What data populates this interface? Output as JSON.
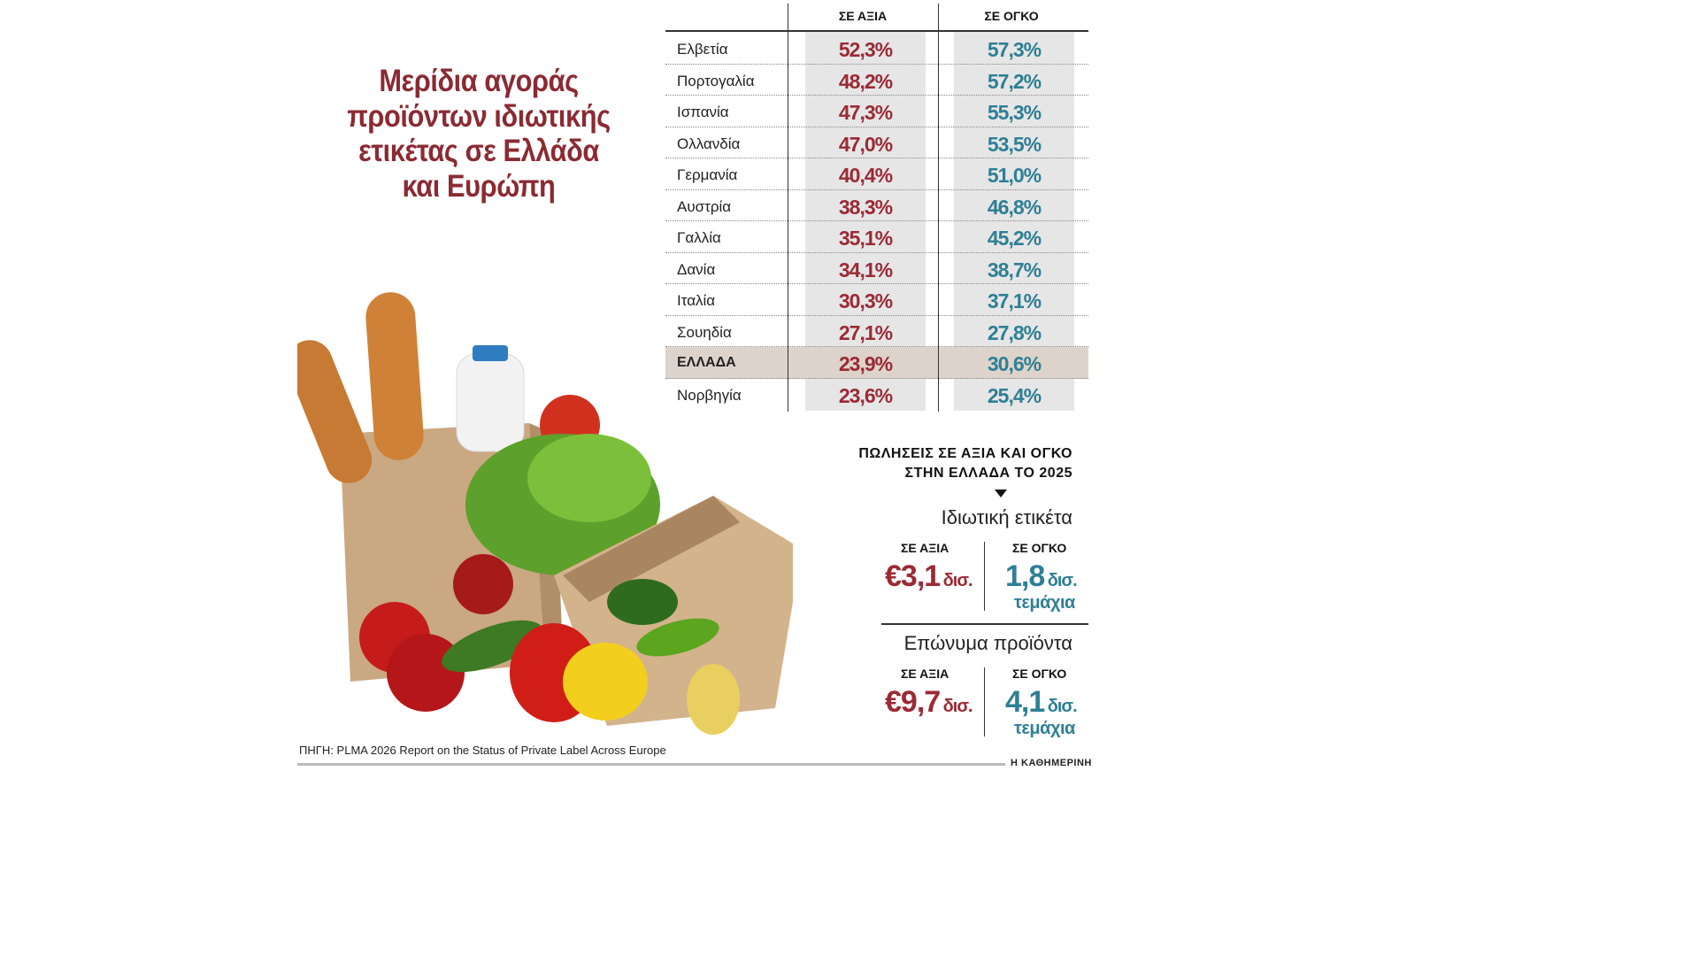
{
  "title": [
    "Μερίδια αγοράς",
    "προϊόντων ιδιωτικής",
    "ετικέτας σε Ελλάδα",
    "και Ευρώπη"
  ],
  "table": {
    "col_value": "ΣΕ ΑΞΙΑ",
    "col_volume": "ΣΕ ΟΓΚΟ",
    "rows": [
      {
        "country": "Ελβετία",
        "value": "52,3%",
        "volume": "57,3%"
      },
      {
        "country": "Πορτογαλία",
        "value": "48,2%",
        "volume": "57,2%"
      },
      {
        "country": "Ισπανία",
        "value": "47,3%",
        "volume": "55,3%"
      },
      {
        "country": "Ολλανδία",
        "value": "47,0%",
        "volume": "53,5%"
      },
      {
        "country": "Γερμανία",
        "value": "40,4%",
        "volume": "51,0%"
      },
      {
        "country": "Αυστρία",
        "value": "38,3%",
        "volume": "46,8%"
      },
      {
        "country": "Γαλλία",
        "value": "35,1%",
        "volume": "45,2%"
      },
      {
        "country": "Δανία",
        "value": "34,1%",
        "volume": "38,7%"
      },
      {
        "country": "Ιταλία",
        "value": "30,3%",
        "volume": "37,1%"
      },
      {
        "country": "Σουηδία",
        "value": "27,1%",
        "volume": "27,8%"
      },
      {
        "country": "ΕΛΛΑΔΑ",
        "value": "23,9%",
        "volume": "30,6%"
      },
      {
        "country": "Νορβηγία",
        "value": "23,6%",
        "volume": "25,4%"
      }
    ]
  },
  "sales": {
    "title_line1": "ΠΩΛΗΣΕΙΣ ΣΕ ΑΞΙΑ ΚΑΙ ΟΓΚΟ",
    "title_line2": "ΣΤΗΝ ΕΛΛΑΔΑ ΤΟ 2025",
    "private": {
      "heading": "Ιδιωτική ετικέτα",
      "value_label": "ΣΕ ΑΞΙΑ",
      "value_num": "€3,1",
      "value_unit": "δισ.",
      "volume_label": "ΣΕ ΟΓΚΟ",
      "volume_num": "1,8",
      "volume_unit": "δισ.",
      "volume_sub": "τεμάχια"
    },
    "brands": {
      "heading": "Επώνυμα προϊόντα",
      "value_label": "ΣΕ ΑΞΙΑ",
      "value_num": "€9,7",
      "value_unit": "δισ.",
      "volume_label": "ΣΕ ΟΓΚΟ",
      "volume_num": "4,1",
      "volume_unit": "δισ.",
      "volume_sub": "τεμάχια"
    }
  },
  "source": "ΠΗΓΗ: PLMA 2026 Report on the Status of Private Label Across Europe",
  "brand": "Η ΚΑΘΗΜΕΡΙΝΗ",
  "colors": {
    "value": "#9b2a35",
    "volume": "#2e7f95",
    "title": "#8b2a32",
    "greece_row": "#ddd3ca"
  }
}
